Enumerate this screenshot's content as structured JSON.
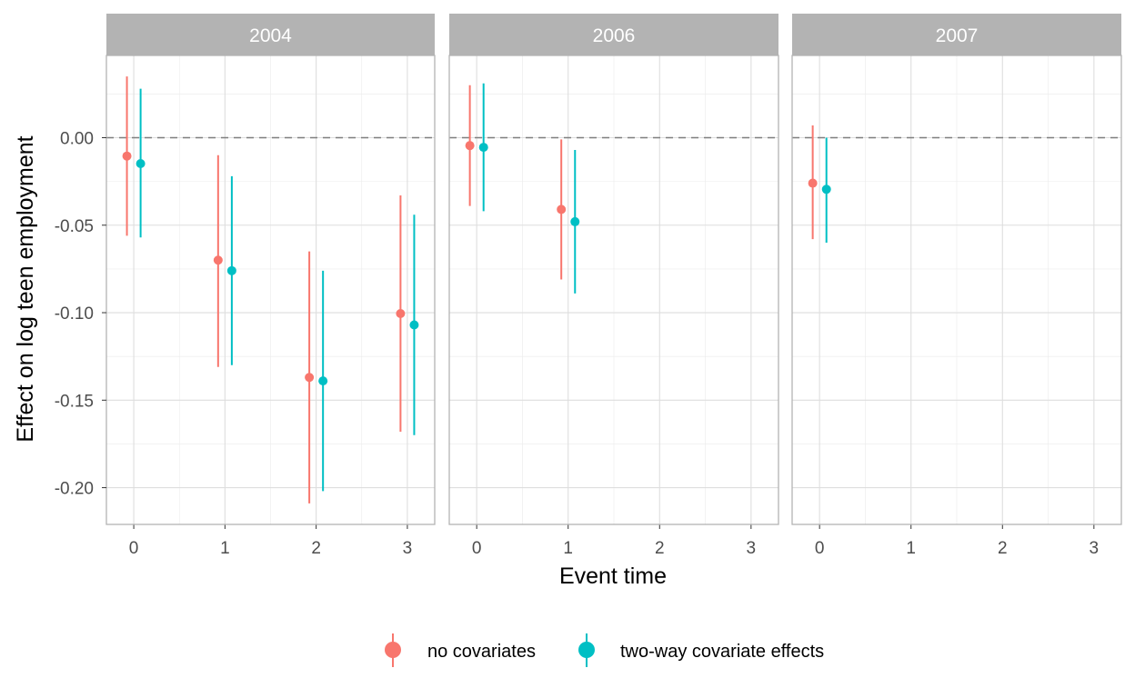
{
  "chart_data": {
    "type": "scatter",
    "subtype": "point-range faceted",
    "xlabel": "Event time",
    "ylabel": "Effect on log teen employment",
    "x_ticks": [
      0,
      1,
      2,
      3
    ],
    "y_ticks": [
      0.0,
      -0.05,
      -0.1,
      -0.15,
      -0.2
    ],
    "y_tick_labels": [
      "0.00",
      "-0.05",
      "-0.10",
      "-0.15",
      "-0.20"
    ],
    "xlim": [
      -0.3,
      3.3
    ],
    "ylim": [
      -0.221,
      0.047
    ],
    "reference_line": {
      "y": 0,
      "style": "dashed"
    },
    "grid": true,
    "legend_position": "bottom",
    "colors": {
      "no covariates": "#F8766D",
      "two-way covariate effects": "#00BFC4"
    },
    "series": [
      {
        "name": "no covariates"
      },
      {
        "name": "two-way covariate effects"
      }
    ],
    "facets": [
      {
        "label": "2004",
        "points": [
          {
            "series": "no covariates",
            "x": 0,
            "y": -0.0105,
            "lo": -0.056,
            "hi": 0.035
          },
          {
            "series": "two-way covariate effects",
            "x": 0,
            "y": -0.0148,
            "lo": -0.057,
            "hi": 0.028
          },
          {
            "series": "no covariates",
            "x": 1,
            "y": -0.07,
            "lo": -0.131,
            "hi": -0.01
          },
          {
            "series": "two-way covariate effects",
            "x": 1,
            "y": -0.076,
            "lo": -0.13,
            "hi": -0.022
          },
          {
            "series": "no covariates",
            "x": 2,
            "y": -0.137,
            "lo": -0.209,
            "hi": -0.065
          },
          {
            "series": "two-way covariate effects",
            "x": 2,
            "y": -0.139,
            "lo": -0.202,
            "hi": -0.076
          },
          {
            "series": "no covariates",
            "x": 3,
            "y": -0.1005,
            "lo": -0.168,
            "hi": -0.033
          },
          {
            "series": "two-way covariate effects",
            "x": 3,
            "y": -0.107,
            "lo": -0.17,
            "hi": -0.044
          }
        ]
      },
      {
        "label": "2006",
        "points": [
          {
            "series": "no covariates",
            "x": 0,
            "y": -0.0045,
            "lo": -0.039,
            "hi": 0.03
          },
          {
            "series": "two-way covariate effects",
            "x": 0,
            "y": -0.0055,
            "lo": -0.042,
            "hi": 0.031
          },
          {
            "series": "no covariates",
            "x": 1,
            "y": -0.041,
            "lo": -0.081,
            "hi": -0.001
          },
          {
            "series": "two-way covariate effects",
            "x": 1,
            "y": -0.048,
            "lo": -0.089,
            "hi": -0.007
          }
        ]
      },
      {
        "label": "2007",
        "points": [
          {
            "series": "no covariates",
            "x": 0,
            "y": -0.026,
            "lo": -0.058,
            "hi": 0.007
          },
          {
            "series": "two-way covariate effects",
            "x": 0,
            "y": -0.0295,
            "lo": -0.06,
            "hi": 0.0
          }
        ]
      }
    ]
  }
}
